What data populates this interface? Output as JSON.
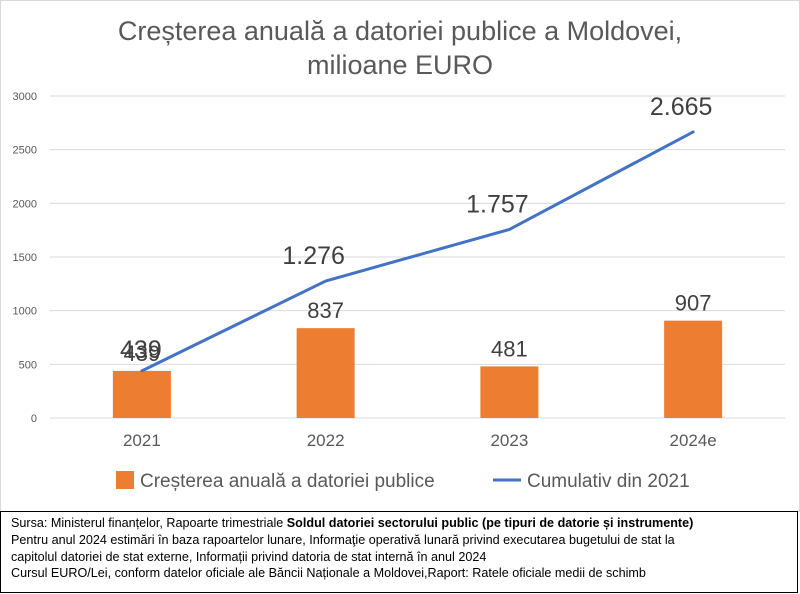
{
  "title_line1": "Creșterea anuală a datoriei publice a Moldovei,",
  "title_line2": "milioane EURO",
  "chart_data": {
    "type": "bar+line",
    "categories": [
      "2021",
      "2022",
      "2023",
      "2024e"
    ],
    "series": [
      {
        "name": "Creșterea anuală a datoriei publice",
        "kind": "bar",
        "color": "#ED7D31",
        "values": [
          439,
          837,
          481,
          907
        ],
        "labels": [
          "439",
          "837",
          "481",
          "907"
        ]
      },
      {
        "name": "Cumulativ din 2021",
        "kind": "line",
        "color": "#4472C4",
        "values": [
          439,
          1276,
          1757,
          2665
        ],
        "labels": [
          "439",
          "1.276",
          "1.757",
          "2.665"
        ]
      }
    ],
    "yticks": [
      0,
      500,
      1000,
      1500,
      2000,
      2500,
      3000
    ],
    "ylim": [
      0,
      3000
    ],
    "grid": true,
    "legend_position": "bottom"
  },
  "source": {
    "line1_prefix": "Sursa: Ministerul finanțelor, Rapoarte trimestriale ",
    "line1_bold": "Soldul datoriei sectorului public (pe tipuri de datorie și instrumente)",
    "line2": "Pentru anul 2024 estimări în baza rapoartelor lunare,  Informaţie operativă lunară privind executarea bugetului de stat la",
    "line3": "capitolul datoriei de stat externe, Informații privind datoria de stat internă în anul 2024",
    "line4": "Cursul EURO/Lei, conform datelor oficiale ale Băncii Naționale a Moldovei,Raport: Ratele oficiale medii de schimb"
  }
}
